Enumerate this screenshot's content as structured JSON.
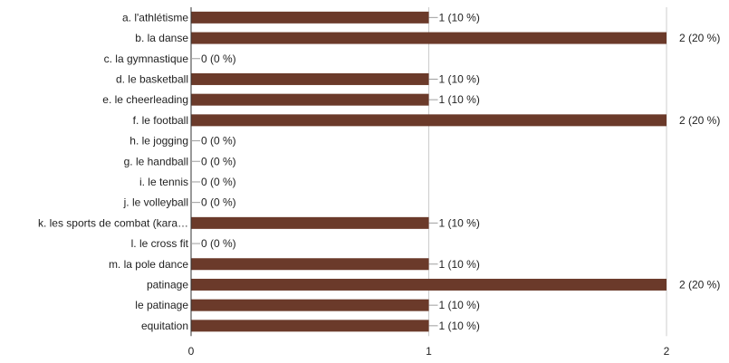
{
  "chart_data": {
    "type": "bar",
    "orientation": "horizontal",
    "title": "",
    "xlabel": "",
    "ylabel": "",
    "xlim": [
      0,
      2
    ],
    "x_ticks": [
      "0",
      "1",
      "2"
    ],
    "grid": true,
    "bar_color": "#6b3a2a",
    "categories": [
      "a. l'athlétisme",
      "b. la danse",
      "c. la gymnastique",
      "d. le basketball",
      "e. le cheerleading",
      "f. le football",
      "h. le jogging",
      "g. le handball",
      "i. le tennis",
      "j. le volleyball",
      "k. les sports de combat (kara…",
      "l. le cross fit",
      "m. la pole dance",
      "patinage",
      "le patinage",
      "equitation"
    ],
    "values": [
      1,
      2,
      0,
      1,
      1,
      2,
      0,
      0,
      0,
      0,
      1,
      0,
      1,
      2,
      1,
      1
    ],
    "value_labels": [
      "1 (10 %)",
      "2 (20 %)",
      "0 (0 %)",
      "1 (10 %)",
      "1 (10 %)",
      "2 (20 %)",
      "0 (0 %)",
      "0 (0 %)",
      "0 (0 %)",
      "0 (0 %)",
      "1 (10 %)",
      "0 (0 %)",
      "1 (10 %)",
      "2 (20 %)",
      "1 (10 %)",
      "1 (10 %)"
    ]
  }
}
